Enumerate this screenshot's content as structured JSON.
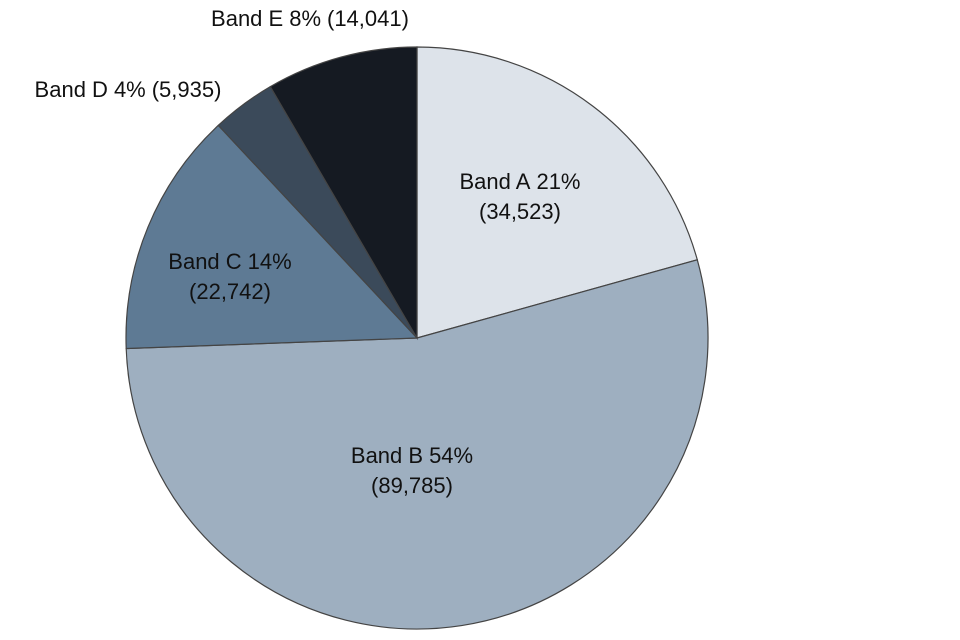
{
  "chart_data": {
    "type": "pie",
    "categories": [
      "Band A",
      "Band B",
      "Band C",
      "Band D",
      "Band E"
    ],
    "values": [
      34523,
      89785,
      22742,
      5935,
      14041
    ],
    "value_labels": [
      "(34,523)",
      "(89,785)",
      "(22,742)",
      "(5,935)",
      "(14,041)"
    ],
    "percent_labels": [
      "21%",
      "54%",
      "14%",
      "4%",
      "8%"
    ],
    "colors": [
      "#dde3ea",
      "#9eafc0",
      "#5e7a94",
      "#3b4a5a",
      "#151a22"
    ]
  }
}
